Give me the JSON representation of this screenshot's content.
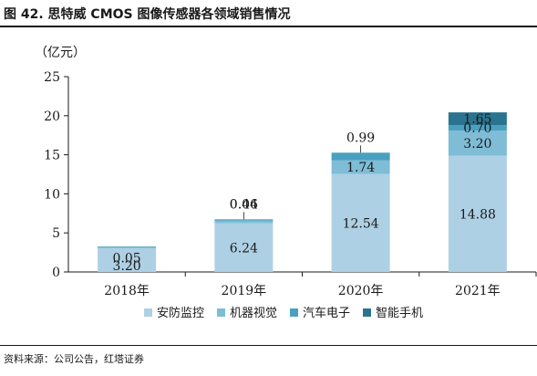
{
  "figure": {
    "title": "图 42.  思特威 CMOS 图像传感器各领域销售情况",
    "source": "资料来源：公司公告，红塔证券"
  },
  "chart_data": {
    "type": "bar",
    "stacked": true,
    "unit_label": "（亿元）",
    "categories": [
      "2018年",
      "2019年",
      "2020年",
      "2021年"
    ],
    "series": [
      {
        "name": "安防监控",
        "color": "#aed0e4",
        "values": [
          3.2,
          6.24,
          12.54,
          14.88
        ]
      },
      {
        "name": "机器视觉",
        "color": "#7fbcd6",
        "values": [
          0,
          0.46,
          1.74,
          3.2
        ]
      },
      {
        "name": "汽车电子",
        "color": "#4aa0bf",
        "values": [
          0.05,
          0.04,
          0.99,
          0.7
        ]
      },
      {
        "name": "智能手机",
        "color": "#2a7490",
        "values": [
          0,
          0,
          0,
          1.65
        ]
      }
    ],
    "labels": [
      [
        {
          "text": "3.20",
          "series": 0
        },
        {
          "text": "0.05",
          "series": 2
        }
      ],
      [
        {
          "text": "6.24",
          "series": 0
        },
        {
          "text": "0.46",
          "series": 1
        },
        {
          "text": "0.04",
          "series": 2
        }
      ],
      [
        {
          "text": "12.54",
          "series": 0
        },
        {
          "text": "1.74",
          "series": 1
        },
        {
          "text": "0.99",
          "series": 2
        }
      ],
      [
        {
          "text": "14.88",
          "series": 0
        },
        {
          "text": "3.20",
          "series": 1
        },
        {
          "text": "0.70",
          "series": 2
        },
        {
          "text": "1.65",
          "series": 3
        }
      ]
    ],
    "yticks": [
      0,
      5,
      10,
      15,
      20,
      25
    ],
    "ylim": [
      0,
      25
    ],
    "grid": false,
    "legend_position": "bottom"
  }
}
